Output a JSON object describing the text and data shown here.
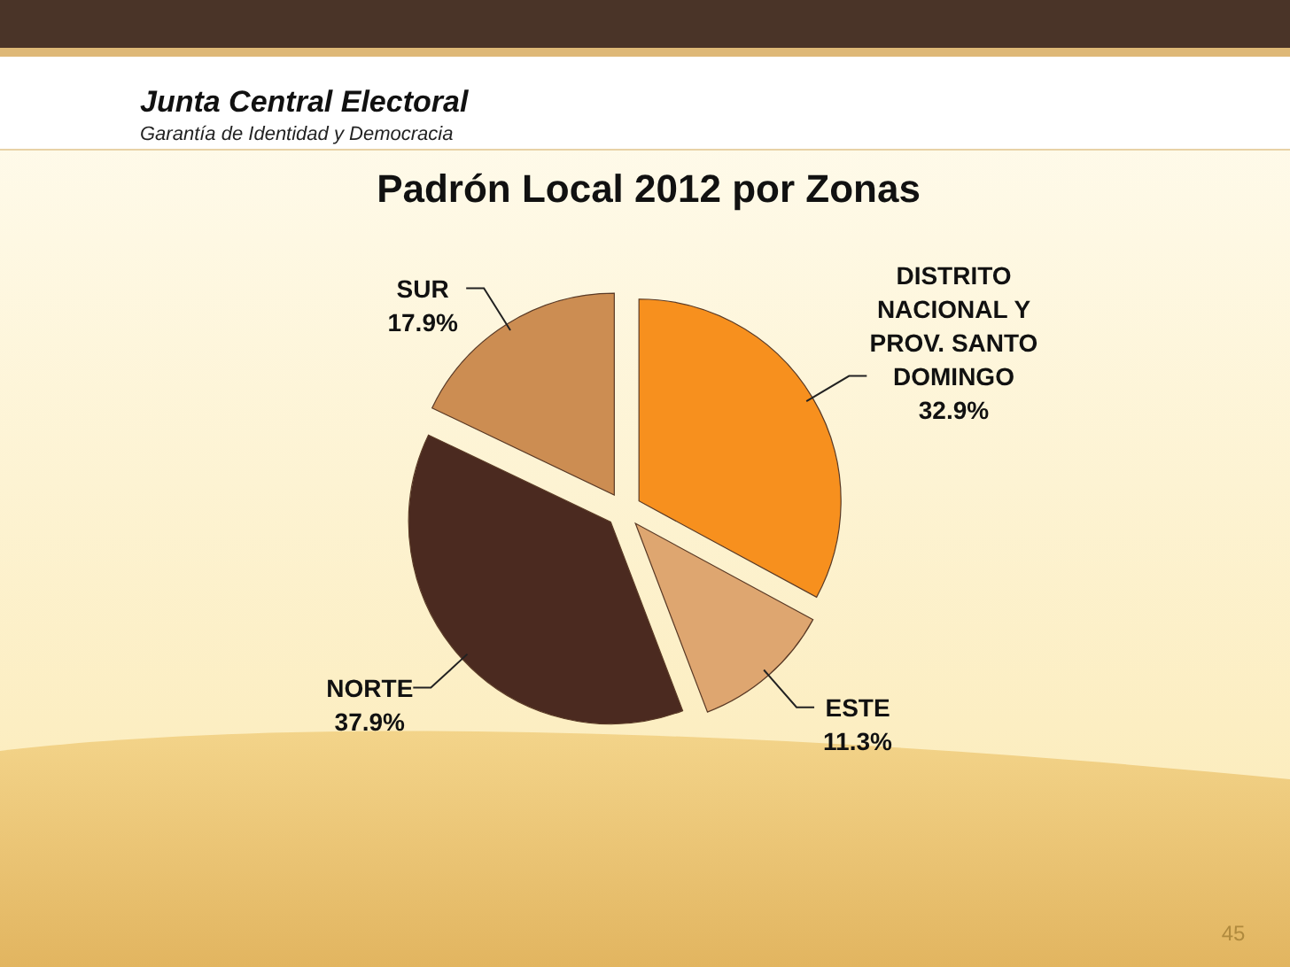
{
  "chart_data": {
    "type": "pie",
    "title": "Padrón Local 2012 por Zonas",
    "annotations": [
      "Junta Central Electoral",
      "Garantía de Identidad y Democracia",
      "45"
    ],
    "categories": [
      "DISTRITO NACIONAL Y PROV. SANTO DOMINGO",
      "ESTE",
      "NORTE",
      "SUR"
    ],
    "values": [
      32.9,
      11.3,
      37.9,
      17.9
    ],
    "value_labels": [
      "32.9%",
      "11.3%",
      "37.9%",
      "17.9%"
    ],
    "colors": [
      "#f7901e",
      "#dea670",
      "#4b2a20",
      "#cc8d52"
    ]
  }
}
